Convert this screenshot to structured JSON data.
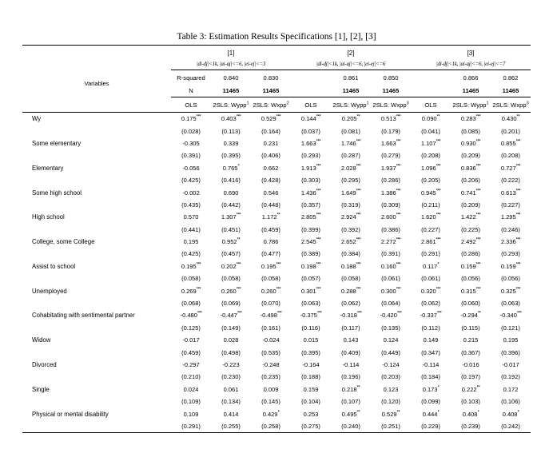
{
  "title": "Table 3: Estimation Results Specifications [1], [2], [3]",
  "header": {
    "variables_label": "Variables",
    "rsq_label": "R-squared",
    "n_label": "N",
    "spec_labels": [
      "[1]",
      "[2]",
      "[3]"
    ],
    "spec_criteria": [
      "|di-dj|<1k, |ai-aj|<=6, |ei-ej|<=3",
      "|di-dj|<1k, |ai-aj|<=6, |ei-ej|<=6",
      "|di-dj|<1k, |ai-aj|<=6, |ei-ej|<=7"
    ],
    "rsq": [
      "0.840",
      "0.830",
      "0.861",
      "0.850",
      "0.866",
      "0.862"
    ],
    "n": [
      "11465",
      "11465",
      "11465",
      "11465",
      "11465",
      "11465"
    ],
    "col_headers": [
      {
        "label": "OLS",
        "sup": ""
      },
      {
        "label": "2SLS: Wypp",
        "sup": "1"
      },
      {
        "label": "2SLS: Wxpp",
        "sup": "2"
      },
      {
        "label": "OLS",
        "sup": ""
      },
      {
        "label": "2SLS: Wypp",
        "sup": "1"
      },
      {
        "label": "2SLS: Wxpp",
        "sup": "3"
      },
      {
        "label": "OLS",
        "sup": ""
      },
      {
        "label": "2SLS: Wypp",
        "sup": "1"
      },
      {
        "label": "2SLS: Wxpp",
        "sup": "3"
      }
    ]
  },
  "rows": [
    {
      "label": "Wy",
      "coef": [
        "0.175***",
        "0.403***",
        "0.529***",
        "0.144***",
        "0.205**",
        "0.513***",
        "0.090**",
        "0.283***",
        "0.430**"
      ],
      "se": [
        "(0.028)",
        "(0.113)",
        "(0.164)",
        "(0.037)",
        "(0.081)",
        "(0.179)",
        "(0.041)",
        "(0.085)",
        "(0.201)"
      ]
    },
    {
      "label": "Some elementary",
      "coef": [
        "-0.305",
        "0.339",
        "0.231",
        "1.663***",
        "1.746***",
        "1.663***",
        "1.107***",
        "0.930***",
        "0.855***"
      ],
      "se": [
        "(0.391)",
        "(0.395)",
        "(0.406)",
        "(0.293)",
        "(0.287)",
        "(0.279)",
        "(0.208)",
        "(0.209)",
        "(0.208)"
      ]
    },
    {
      "label": "Elementary",
      "coef": [
        "-0.056",
        "0.765*",
        "0.662",
        "1.913***",
        "2.028***",
        "1.937***",
        "1.096***",
        "0.836***",
        "0.727***"
      ],
      "se": [
        "(0.425)",
        "(0.416)",
        "(0.428)",
        "(0.303)",
        "(0.295)",
        "(0.286)",
        "(0.205)",
        "(0.206)",
        "(0.222)"
      ]
    },
    {
      "label": "Some high school",
      "coef": [
        "-0.002",
        "0.690",
        "0.546",
        "1.436***",
        "1.649***",
        "1.386***",
        "0.945***",
        "0.741***",
        "0.613***"
      ],
      "se": [
        "(0.435)",
        "(0.442)",
        "(0.448)",
        "(0.357)",
        "(0.319)",
        "(0.309)",
        "(0.211)",
        "(0.209)",
        "(0.227)"
      ]
    },
    {
      "label": "High school",
      "coef": [
        "0.570",
        "1.307***",
        "1.172**",
        "2.805***",
        "2.924***",
        "2.600***",
        "1.620***",
        "1.422***",
        "1.295***"
      ],
      "se": [
        "(0.441)",
        "(0.451)",
        "(0.459)",
        "(0.399)",
        "(0.392)",
        "(0.386)",
        "(0.227)",
        "(0.225)",
        "(0.246)"
      ]
    },
    {
      "label": "College, some College",
      "coef": [
        "0.195",
        "0.952**",
        "0.786",
        "2.545***",
        "2.652***",
        "2.272***",
        "2.861***",
        "2.492***",
        "2.336***"
      ],
      "se": [
        "(0.425)",
        "(0.457)",
        "(0.477)",
        "(0.389)",
        "(0.384)",
        "(0.391)",
        "(0.291)",
        "(0.286)",
        "(0.293)"
      ]
    },
    {
      "label": "Assist to school",
      "coef": [
        "0.195***",
        "0.202***",
        "0.195***",
        "0.198***",
        "0.188***",
        "0.160***",
        "0.117*",
        "0.159***",
        "0.159***"
      ],
      "se": [
        "(0.058)",
        "(0.058)",
        "(0.058)",
        "(0.057)",
        "(0.058)",
        "(0.061)",
        "(0.061)",
        "(0.056)",
        "(0.056)"
      ]
    },
    {
      "label": "Unemployed",
      "coef": [
        "0.269***",
        "0.260***",
        "0.260***",
        "0.301***",
        "0.288***",
        "0.300***",
        "0.320***",
        "0.315***",
        "0.325***"
      ],
      "se": [
        "(0.068)",
        "(0.069)",
        "(0.070)",
        "(0.063)",
        "(0.062)",
        "(0.064)",
        "(0.062)",
        "(0.060)",
        "(0.063)"
      ]
    },
    {
      "label": "Cohabitating with sentimental partner",
      "coef": [
        "-0.480***",
        "-0.447***",
        "-0.498***",
        "-0.375***",
        "-0.318***",
        "-0.420***",
        "-0.337***",
        "-0.294**",
        "-0.340***"
      ],
      "se": [
        "(0.125)",
        "(0.149)",
        "(0.161)",
        "(0.116)",
        "(0.117)",
        "(0.135)",
        "(0.112)",
        "(0.115)",
        "(0.121)"
      ]
    },
    {
      "label": "Widow",
      "coef": [
        "-0.017",
        "0.028",
        "-0.024",
        "0.015",
        "0.143",
        "0.124",
        "0.149",
        "0.215",
        "0.195"
      ],
      "se": [
        "(0.459)",
        "(0.498)",
        "(0.535)",
        "(0.395)",
        "(0.409)",
        "(0.449)",
        "(0.347)",
        "(0.367)",
        "(0.396)"
      ]
    },
    {
      "label": "Divorced",
      "coef": [
        "-0.297",
        "-0.223",
        "-0.248",
        "-0.164",
        "-0.114",
        "-0.124",
        "-0.114",
        "-0.016",
        "-0.017"
      ],
      "se": [
        "(0.210)",
        "(0.230)",
        "(0.235)",
        "(0.188)",
        "(0.196)",
        "(0.203)",
        "(0.184)",
        "(0.197)",
        "(0.192)"
      ]
    },
    {
      "label": "Single",
      "coef": [
        "0.024",
        "0.061",
        "0.009",
        "0.159",
        "0.218**",
        "0.123",
        "0.173*",
        "0.222**",
        "0.172"
      ],
      "se": [
        "(0.109)",
        "(0.134)",
        "(0.145)",
        "(0.104)",
        "(0.107)",
        "(0.120)",
        "(0.099)",
        "(0.103)",
        "(0.106)"
      ]
    },
    {
      "label": "Physical or mental disability",
      "coef": [
        "0.109",
        "0.414",
        "0.429*",
        "0.253",
        "0.495**",
        "0.529**",
        "0.444*",
        "0.408*",
        "0.408*"
      ],
      "se": [
        "(0.291)",
        "(0.255)",
        "(0.258)",
        "(0.275)",
        "(0.240)",
        "(0.251)",
        "(0.229)",
        "(0.239)",
        "(0.242)"
      ]
    }
  ]
}
